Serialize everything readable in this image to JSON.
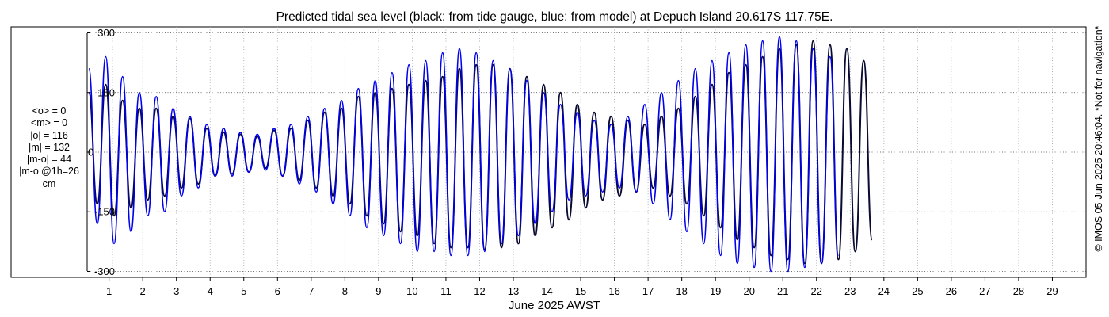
{
  "chart_data": {
    "type": "line",
    "title": "Predicted tidal sea level (black: from tide gauge, blue: from model) at Depuch Island 20.617S 117.75E.",
    "xlabel": "June 2025 AWST",
    "ylabel": "",
    "x_ticks": [
      "1",
      "2",
      "3",
      "4",
      "5",
      "6",
      "7",
      "8",
      "9",
      "10",
      "11",
      "12",
      "13",
      "14",
      "15",
      "16",
      "17",
      "18",
      "19",
      "20",
      "21",
      "22",
      "23",
      "24",
      "25",
      "26",
      "27",
      "28",
      "29"
    ],
    "y_ticks": [
      "-300",
      "-150",
      "0",
      "150",
      "300"
    ],
    "xlim": [
      0.35,
      30.0
    ],
    "ylim": [
      -315,
      315
    ],
    "grid": true,
    "x_unit": "day of June 2025",
    "sample_step_days": 0.25,
    "series": [
      {
        "name": "black: from tide gauge",
        "color": "#0a0a33",
        "x_start": 0.4,
        "values": [
          150,
          -130,
          170,
          -160,
          130,
          -140,
          110,
          -120,
          110,
          -110,
          90,
          -90,
          85,
          -80,
          60,
          -60,
          50,
          -55,
          45,
          -50,
          40,
          -40,
          55,
          -60,
          60,
          -70,
          80,
          -90,
          100,
          -110,
          110,
          -130,
          140,
          -160,
          150,
          -180,
          160,
          -200,
          170,
          -210,
          180,
          -230,
          190,
          -240,
          210,
          -240,
          220,
          -245,
          220,
          -240,
          210,
          -230,
          190,
          -210,
          170,
          -190,
          150,
          -170,
          120,
          -140,
          100,
          -120,
          90,
          -110,
          80,
          -100,
          70,
          -90,
          90,
          -110,
          110,
          -130,
          140,
          -160,
          170,
          -190,
          200,
          -220,
          220,
          -240,
          240,
          -260,
          260,
          -270,
          270,
          -280,
          280,
          -280,
          270,
          -270,
          260,
          -250,
          230,
          -220
        ]
      },
      {
        "name": "blue: from model",
        "color": "#0000ee",
        "x_start": 0.4,
        "values": [
          210,
          -180,
          240,
          -230,
          190,
          -200,
          150,
          -160,
          140,
          -150,
          110,
          -110,
          90,
          -90,
          70,
          -60,
          60,
          -60,
          50,
          -50,
          45,
          -45,
          60,
          -60,
          70,
          -80,
          90,
          -100,
          110,
          -130,
          130,
          -160,
          160,
          -190,
          180,
          -210,
          200,
          -230,
          220,
          -250,
          230,
          -250,
          250,
          -260,
          260,
          -260,
          250,
          -250,
          230,
          -230,
          210,
          -210,
          180,
          -180,
          150,
          -150,
          120,
          -120,
          100,
          -110,
          80,
          -100,
          70,
          -90,
          90,
          -100,
          120,
          -130,
          150,
          -170,
          180,
          -200,
          210,
          -230,
          230,
          -260,
          250,
          -280,
          270,
          -290,
          280,
          -300,
          290,
          -300,
          280,
          -290,
          260,
          -280,
          240,
          -260
        ]
      }
    ],
    "annotations": {
      "stats": [
        "<o> = 0",
        "<m> = 0",
        "|o| = 116",
        "|m| = 132",
        "|m-o| = 44",
        "|m-o|@1h=26",
        "cm"
      ],
      "credit": "© IMOS 05-Jun-2025 20:46:04.  *Not for navigation*"
    }
  }
}
